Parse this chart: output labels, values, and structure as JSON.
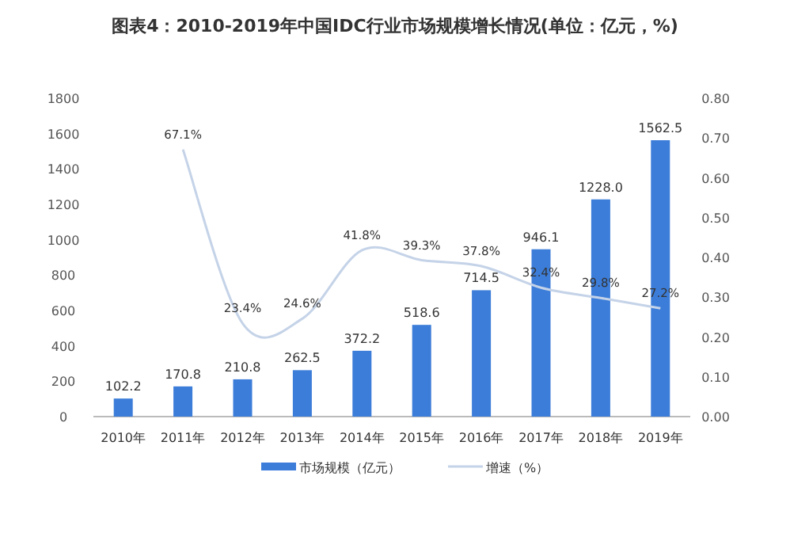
{
  "chart_data": {
    "type": "bar",
    "title": "图表4：2010-2019年中国IDC行业市场规模增长情况(单位：亿元，%)",
    "categories": [
      "2010年",
      "2011年",
      "2012年",
      "2013年",
      "2014年",
      "2015年",
      "2016年",
      "2017年",
      "2018年",
      "2019年"
    ],
    "series": [
      {
        "name": "市场规模（亿元）",
        "color": "#3c7dd9",
        "values": [
          102.2,
          170.8,
          210.8,
          262.5,
          372.2,
          518.6,
          714.5,
          946.1,
          1228.0,
          1562.5
        ],
        "value_labels": [
          "102.2",
          "170.8",
          "210.8",
          "262.5",
          "372.2",
          "518.6",
          "714.5",
          "946.1",
          "1228.0",
          "1562.5"
        ]
      },
      {
        "name": "增速（%）",
        "type": "line",
        "axis": "y2",
        "color": "#c5d3e8",
        "values": [
          null,
          0.671,
          0.234,
          0.246,
          0.418,
          0.393,
          0.378,
          0.324,
          0.298,
          0.272
        ],
        "value_labels": [
          null,
          "67.1%",
          "23.4%",
          "24.6%",
          "41.8%",
          "39.3%",
          "37.8%",
          "32.4%",
          "29.8%",
          "27.2%"
        ]
      }
    ],
    "ylim": [
      0,
      1800
    ],
    "yticks": [
      0,
      200,
      400,
      600,
      800,
      1000,
      1200,
      1400,
      1600,
      1800
    ],
    "y2lim": [
      0,
      0.8
    ],
    "y2ticks": [
      {
        "value": 0,
        "label": "0.00"
      },
      {
        "value": 0.1,
        "label": "0.10"
      },
      {
        "value": 0.2,
        "label": "0.20"
      },
      {
        "value": 0.3,
        "label": "0.30"
      },
      {
        "value": 0.4,
        "label": "0.40"
      },
      {
        "value": 0.5,
        "label": "0.50"
      },
      {
        "value": 0.6,
        "label": "0.60"
      },
      {
        "value": 0.7,
        "label": "0.70"
      },
      {
        "value": 0.8,
        "label": "0.80"
      }
    ],
    "legend": "bottom"
  }
}
